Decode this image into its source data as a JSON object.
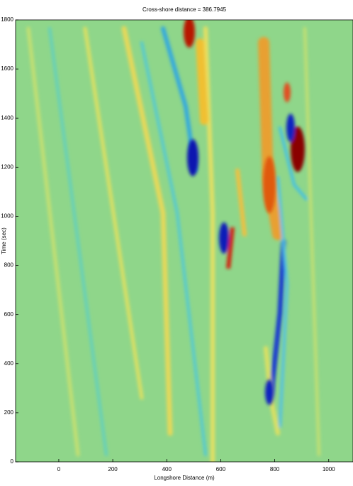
{
  "chart_data": {
    "type": "heatmap",
    "title": "Cross-shore distance = 386.7945",
    "xlabel": "Longshore Distance (m)",
    "ylabel": "Time (sec)",
    "xlim": [
      -160,
      1090
    ],
    "xticks": [
      0,
      200,
      400,
      600,
      800,
      1000
    ],
    "ylim": [
      0,
      1800
    ],
    "yticks": [
      0,
      200,
      400,
      600,
      800,
      1000,
      1200,
      1400,
      1600,
      1800
    ],
    "color": "#8fd68a"
  }
}
